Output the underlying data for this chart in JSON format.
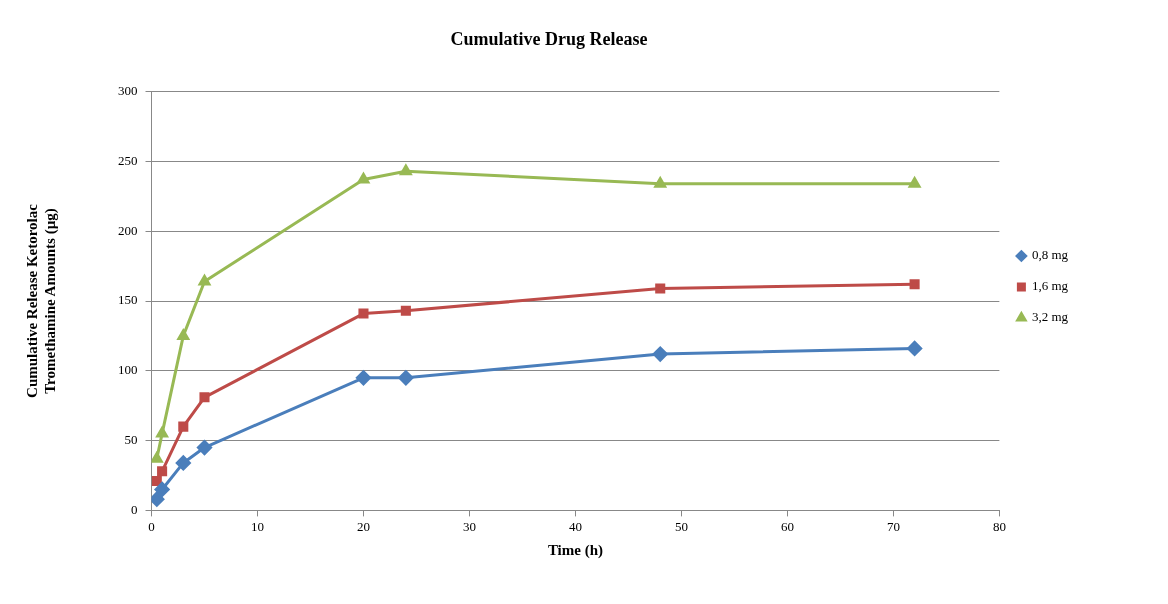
{
  "chart_data": {
    "type": "line",
    "title": "Cumulative Drug Release",
    "xlabel": "Time (h)",
    "ylabel": "Cumulative Release Ketorolac Tromethamine Amounts (µg)",
    "x": [
      0.5,
      1,
      3,
      5,
      20,
      24,
      48,
      72
    ],
    "series": [
      {
        "name": "0,8 mg",
        "color": "#4a7ebb",
        "marker": "diamond",
        "values": [
          8,
          15,
          34,
          45,
          95,
          95,
          112,
          116
        ]
      },
      {
        "name": "1,6 mg",
        "color": "#be4b48",
        "marker": "square",
        "values": [
          21,
          28,
          60,
          81,
          141,
          143,
          159,
          162
        ]
      },
      {
        "name": "3,2 mg",
        "color": "#98b954",
        "marker": "triangle",
        "values": [
          37,
          55,
          125,
          164,
          237,
          243,
          234,
          234
        ]
      }
    ],
    "xlim": [
      0,
      80
    ],
    "xticks": [
      0,
      10,
      20,
      30,
      40,
      50,
      60,
      70,
      80
    ],
    "ylim": [
      0,
      300
    ],
    "yticks": [
      0,
      50,
      100,
      150,
      200,
      250,
      300
    ],
    "grid": "y",
    "legend": "right",
    "line_style": "solid"
  }
}
